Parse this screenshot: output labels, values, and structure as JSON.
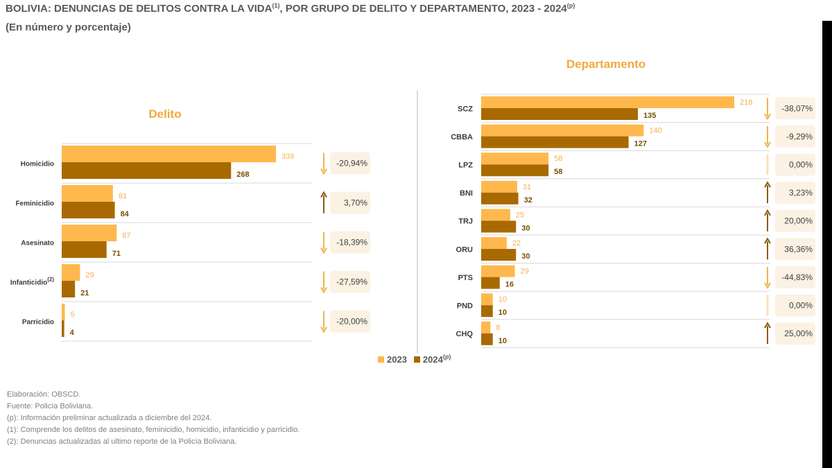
{
  "title": {
    "main": "BOLIVIA: DENUNCIAS DE DELITOS CONTRA LA VIDA",
    "main_sup": "(1)",
    "main_rest": ", POR GRUPO DE DELITO Y DEPARTAMENTO, 2023 - 2024",
    "main_rest_sup": "(p)",
    "subtitle": "(En número y porcentaje)"
  },
  "colors": {
    "c2023": "#FFB84D",
    "c2024": "#A86A00",
    "label2023": "#F5B050",
    "label2024": "#7A4E00",
    "badge": "#FBF2E4"
  },
  "legend": {
    "y1": "2023",
    "y2": "2024",
    "y2_sup": "(p)"
  },
  "chart_data": [
    {
      "type": "bar",
      "orientation": "horizontal",
      "title": "Delito",
      "categories": [
        "Homicidio",
        "Feminicidio",
        "Asesinato",
        "Infanticidio",
        "Parricidio"
      ],
      "category_sups": [
        "",
        "",
        "",
        "(2)",
        ""
      ],
      "series": [
        {
          "name": "2023",
          "values": [
            339,
            81,
            87,
            29,
            5
          ]
        },
        {
          "name": "2024(p)",
          "values": [
            268,
            84,
            71,
            21,
            4
          ]
        }
      ],
      "changes": [
        "-20,94%",
        "3,70%",
        "-18,39%",
        "-27,59%",
        "-20,00%"
      ],
      "trend": [
        "down",
        "up",
        "down",
        "down",
        "down"
      ]
    },
    {
      "type": "bar",
      "orientation": "horizontal",
      "title": "Departamento",
      "categories": [
        "SCZ",
        "CBBA",
        "LPZ",
        "BNI",
        "TRJ",
        "ORU",
        "PTS",
        "PND",
        "CHQ"
      ],
      "series": [
        {
          "name": "2023",
          "values": [
            218,
            140,
            58,
            31,
            25,
            22,
            29,
            10,
            8
          ]
        },
        {
          "name": "2024(p)",
          "values": [
            135,
            127,
            58,
            32,
            30,
            30,
            16,
            10,
            10
          ]
        }
      ],
      "changes": [
        "-38,07%",
        "-9,29%",
        "0,00%",
        "3,23%",
        "20,00%",
        "36,36%",
        "-44,83%",
        "0,00%",
        "25,00%"
      ],
      "trend": [
        "down",
        "down",
        "flat",
        "up",
        "up",
        "up",
        "down",
        "flat",
        "up"
      ]
    }
  ],
  "notes": [
    "Elaboración: OBSCD.",
    "Fuente: Policía Boliviana.",
    "(p): Información preliminar actualizada a diciembre del 2024.",
    "(1): Comprende los delitos de asesinato, feminicidio, homicidio, infanticidio y parricidio.",
    "(2): Denuncias actualizadas al ultimo reporte de la Policía Boliviana."
  ]
}
